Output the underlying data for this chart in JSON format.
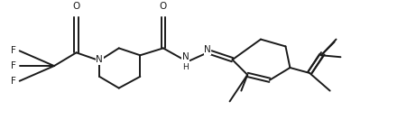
{
  "bg_color": "#ffffff",
  "line_color": "#1a1a1a",
  "lw": 1.4,
  "font_size": 7.5,
  "fig_w": 4.61,
  "fig_h": 1.33,
  "dpi": 100,
  "atoms": {
    "F_labels": [
      "F",
      "F",
      "F"
    ],
    "N_label": "N",
    "NH_label": "N",
    "H_label": "H",
    "N2_label": "N",
    "O1_label": "O",
    "O2_label": "O"
  }
}
